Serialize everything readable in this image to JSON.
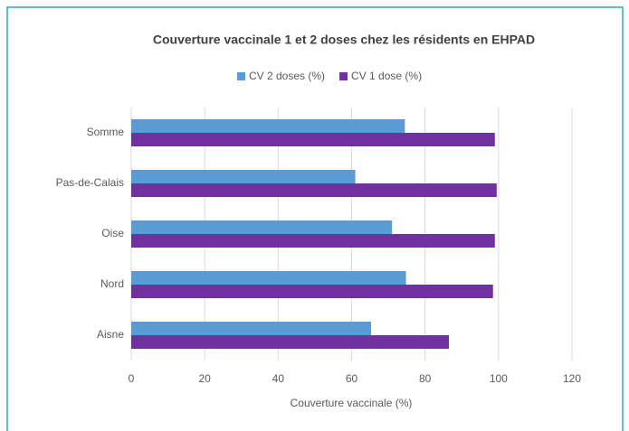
{
  "chart_data": {
    "type": "hbar",
    "title": "Couverture vaccinale 1 et 2 doses chez les résidents en EHPAD",
    "x_label": "Couverture vaccinale (%)",
    "categories": [
      "Aisne",
      "Nord",
      "Oise",
      "Pas-de-Calais",
      "Somme"
    ],
    "series": [
      {
        "name": "CV 2 doses (%)",
        "color": "#5b9bd5",
        "values": [
          65.3,
          74.8,
          71,
          61,
          74.5
        ]
      },
      {
        "name": "CV 1 dose (%)",
        "color": "#7030a0",
        "values": [
          86.5,
          98.5,
          99,
          99.5,
          99
        ]
      }
    ],
    "xlim": [
      0,
      120
    ],
    "xticks": [
      0,
      20,
      40,
      60,
      80,
      100,
      120
    ],
    "grid": true,
    "legend": "top"
  }
}
